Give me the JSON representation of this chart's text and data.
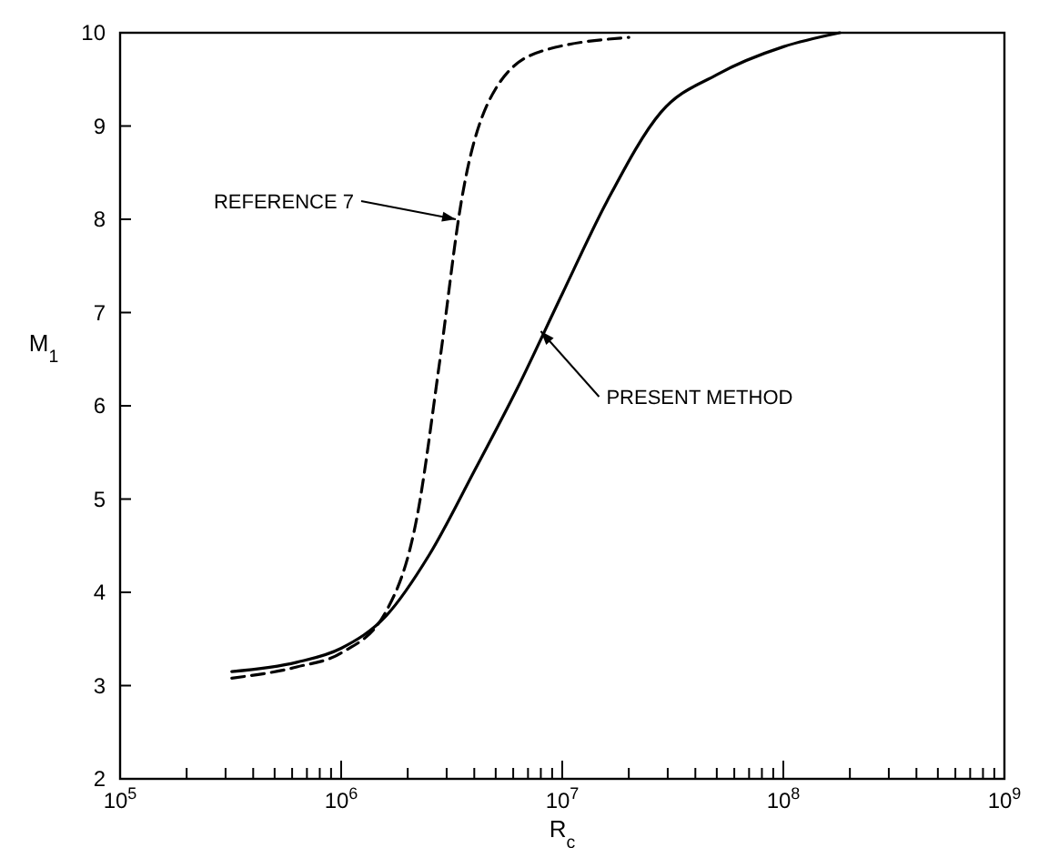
{
  "chart_data": {
    "type": "line",
    "xlabel": "R$_{c}$",
    "ylabel": "M$_{1}$",
    "log": "x",
    "xlim": [
      100000,
      1000000000
    ],
    "xticks": [
      {
        "value": 100000,
        "label": "10$^{5}$"
      },
      {
        "value": 200000,
        "label": null
      },
      {
        "value": 300000,
        "label": null
      },
      {
        "value": 400000,
        "label": null
      },
      {
        "value": 500000,
        "label": null
      },
      {
        "value": 600000,
        "label": null
      },
      {
        "value": 700000,
        "label": null
      },
      {
        "value": 800000,
        "label": null
      },
      {
        "value": 900000,
        "label": null
      },
      {
        "value": 1000000,
        "label": "10$^{6}$"
      },
      {
        "value": 2000000,
        "label": null
      },
      {
        "value": 3000000,
        "label": null
      },
      {
        "value": 4000000,
        "label": null
      },
      {
        "value": 5000000,
        "label": null
      },
      {
        "value": 6000000,
        "label": null
      },
      {
        "value": 7000000,
        "label": null
      },
      {
        "value": 8000000,
        "label": null
      },
      {
        "value": 9000000,
        "label": null
      },
      {
        "value": 10000000,
        "label": "10$^{7}$"
      },
      {
        "value": 20000000,
        "label": null
      },
      {
        "value": 30000000,
        "label": null
      },
      {
        "value": 40000000,
        "label": null
      },
      {
        "value": 50000000,
        "label": null
      },
      {
        "value": 60000000,
        "label": null
      },
      {
        "value": 70000000,
        "label": null
      },
      {
        "value": 80000000,
        "label": null
      },
      {
        "value": 90000000,
        "label": null
      },
      {
        "value": 100000000,
        "label": "10$^{8}$"
      },
      {
        "value": 200000000,
        "label": null
      },
      {
        "value": 300000000,
        "label": null
      },
      {
        "value": 400000000,
        "label": null
      },
      {
        "value": 500000000,
        "label": null
      },
      {
        "value": 600000000,
        "label": null
      },
      {
        "value": 700000000,
        "label": null
      },
      {
        "value": 800000000,
        "label": null
      },
      {
        "value": 900000000,
        "label": null
      },
      {
        "value": 1000000000,
        "label": "10$^{9}$"
      }
    ],
    "ylim": [
      2,
      10
    ],
    "yticks": [
      2,
      3,
      4,
      5,
      6,
      7,
      8,
      9,
      10
    ],
    "grid": false,
    "marker": "none",
    "series": [
      {
        "color": "#000000",
        "line_style": "solid",
        "x": [
          320000,
          630000,
          1000000,
          1600000,
          2500000,
          4000000,
          6300000,
          10000000,
          16000000,
          28000000,
          50000000,
          100000000,
          180000000
        ],
        "values": [
          3.15,
          3.25,
          3.4,
          3.75,
          4.4,
          5.3,
          6.2,
          7.2,
          8.2,
          9.15,
          9.55,
          9.85,
          10
        ]
      },
      {
        "color": "#000000",
        "line_style": "dashed",
        "x": [
          320000,
          630000,
          1000000,
          1600000,
          2200000,
          2800000,
          3500000,
          5000000,
          8000000,
          20000000
        ],
        "values": [
          3.08,
          3.2,
          3.35,
          3.8,
          4.8,
          6.5,
          8.2,
          9.4,
          9.8,
          9.95
        ]
      }
    ],
    "annotations": [
      {
        "text": "REFERENCE 7",
        "x": 3300000,
        "y": 8.0
      },
      {
        "text": "PRESENT METHOD",
        "x": 8000000,
        "y": 6.8
      }
    ]
  }
}
